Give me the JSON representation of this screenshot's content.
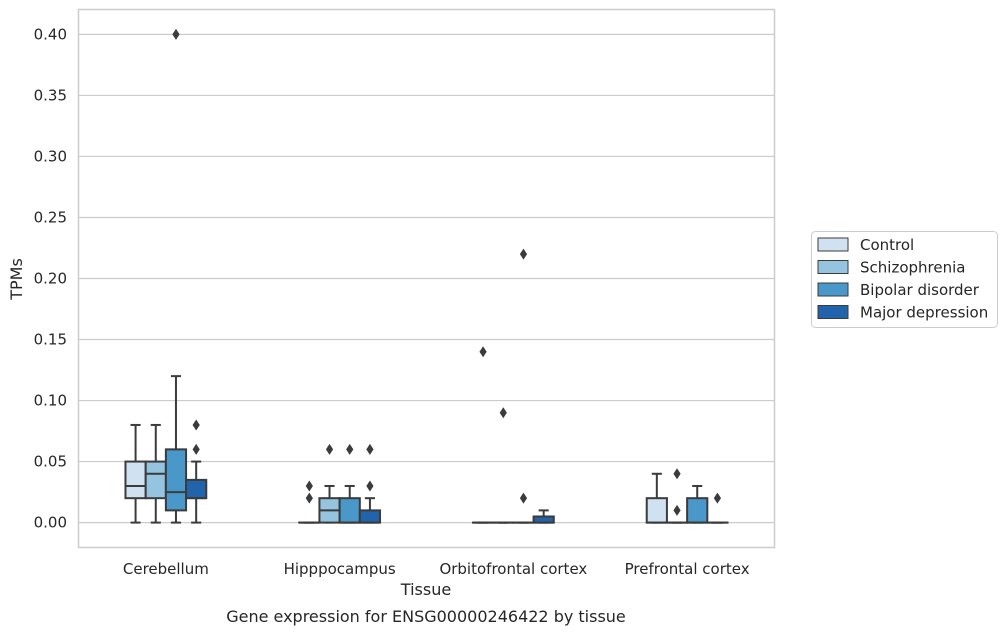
{
  "chart_data": {
    "type": "boxplot",
    "caption": "Gene expression for ENSG00000246422 by tissue",
    "xlabel": "Tissue",
    "ylabel": "TPMs",
    "ylim": [
      -0.02,
      0.42
    ],
    "yticks": [
      "0.00",
      "0.05",
      "0.10",
      "0.15",
      "0.20",
      "0.25",
      "0.30",
      "0.35",
      "0.40"
    ],
    "grid": "horizontal",
    "legend_position": "right",
    "categories": [
      "Cerebellum",
      "Hipppocampus",
      "Orbitofrontal cortex",
      "Prefrontal cortex"
    ],
    "series": [
      {
        "name": "Control",
        "color": "#d0e1f2",
        "boxes": [
          {
            "q1": 0.02,
            "median": 0.03,
            "q3": 0.05,
            "whislo": 0.0,
            "whishi": 0.08,
            "fliers": []
          },
          {
            "q1": 0.0,
            "median": 0.0,
            "q3": 0.0,
            "whislo": 0.0,
            "whishi": 0.0,
            "fliers": [
              0.02,
              0.03
            ]
          },
          {
            "q1": 0.0,
            "median": 0.0,
            "q3": 0.0,
            "whislo": 0.0,
            "whishi": 0.0,
            "fliers": [
              0.14
            ]
          },
          {
            "q1": 0.0,
            "median": 0.0,
            "q3": 0.02,
            "whislo": 0.0,
            "whishi": 0.04,
            "fliers": []
          }
        ]
      },
      {
        "name": "Schizophrenia",
        "color": "#94c4df",
        "boxes": [
          {
            "q1": 0.02,
            "median": 0.04,
            "q3": 0.05,
            "whislo": 0.0,
            "whishi": 0.08,
            "fliers": []
          },
          {
            "q1": 0.0,
            "median": 0.01,
            "q3": 0.02,
            "whislo": 0.0,
            "whishi": 0.03,
            "fliers": [
              0.06
            ]
          },
          {
            "q1": 0.0,
            "median": 0.0,
            "q3": 0.0,
            "whislo": 0.0,
            "whishi": 0.0,
            "fliers": [
              0.09
            ]
          },
          {
            "q1": 0.0,
            "median": 0.0,
            "q3": 0.0,
            "whislo": 0.0,
            "whishi": 0.0,
            "fliers": [
              0.01,
              0.04
            ]
          }
        ]
      },
      {
        "name": "Bipolar disorder",
        "color": "#4a98c9",
        "boxes": [
          {
            "q1": 0.01,
            "median": 0.025,
            "q3": 0.06,
            "whislo": 0.0,
            "whishi": 0.12,
            "fliers": [
              0.4
            ]
          },
          {
            "q1": 0.0,
            "median": 0.0,
            "q3": 0.02,
            "whislo": 0.0,
            "whishi": 0.03,
            "fliers": [
              0.06
            ]
          },
          {
            "q1": 0.0,
            "median": 0.0,
            "q3": 0.0,
            "whislo": 0.0,
            "whishi": 0.0,
            "fliers": [
              0.02,
              0.22
            ]
          },
          {
            "q1": 0.0,
            "median": 0.0,
            "q3": 0.02,
            "whislo": 0.0,
            "whishi": 0.03,
            "fliers": []
          }
        ]
      },
      {
        "name": "Major depression",
        "color": "#2264ab",
        "boxes": [
          {
            "q1": 0.02,
            "median": 0.02,
            "q3": 0.035,
            "whislo": 0.0,
            "whishi": 0.05,
            "fliers": [
              0.06,
              0.08
            ]
          },
          {
            "q1": 0.0,
            "median": 0.0,
            "q3": 0.01,
            "whislo": 0.0,
            "whishi": 0.02,
            "fliers": [
              0.03,
              0.06
            ]
          },
          {
            "q1": 0.0,
            "median": 0.0,
            "q3": 0.005,
            "whislo": 0.0,
            "whishi": 0.01,
            "fliers": []
          },
          {
            "q1": 0.0,
            "median": 0.0,
            "q3": 0.0,
            "whislo": 0.0,
            "whishi": 0.0,
            "fliers": [
              0.02
            ]
          }
        ]
      }
    ]
  }
}
